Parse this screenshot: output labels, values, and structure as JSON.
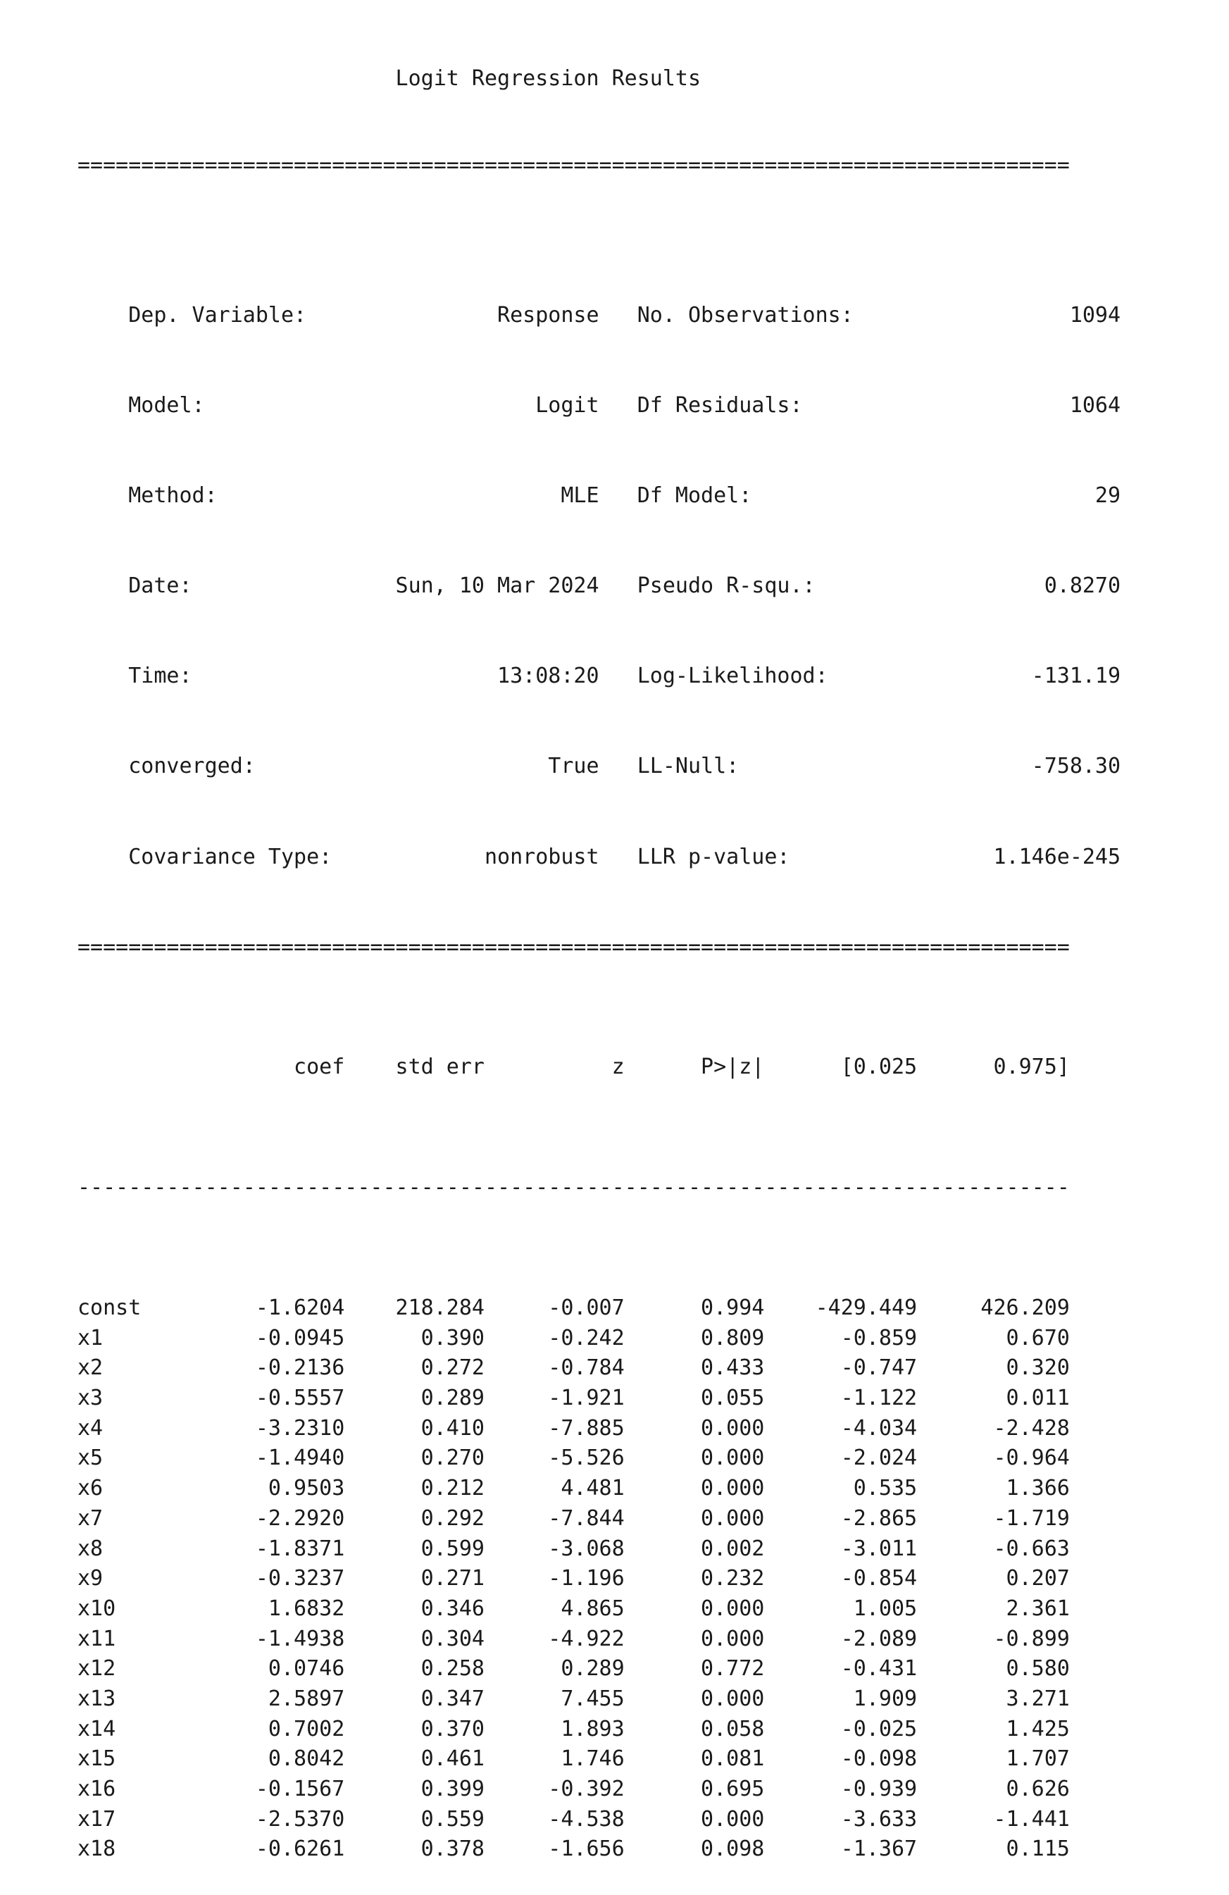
{
  "title": "Logit Regression Results",
  "rule_double": "==============================================================================",
  "rule_single": "------------------------------------------------------------------------------",
  "summary": [
    {
      "left_label": "Dep. Variable:",
      "left_value": "Response",
      "right_label": "No. Observations:",
      "right_value": "1094"
    },
    {
      "left_label": "Model:",
      "left_value": "Logit",
      "right_label": "Df Residuals:",
      "right_value": "1064"
    },
    {
      "left_label": "Method:",
      "left_value": "MLE",
      "right_label": "Df Model:",
      "right_value": "29"
    },
    {
      "left_label": "Date:",
      "left_value": "Sun, 10 Mar 2024",
      "right_label": "Pseudo R-squ.:",
      "right_value": "0.8270"
    },
    {
      "left_label": "Time:",
      "left_value": "13:08:20",
      "right_label": "Log-Likelihood:",
      "right_value": "-131.19"
    },
    {
      "left_label": "converged:",
      "left_value": "True",
      "right_label": "LL-Null:",
      "right_value": "-758.30"
    },
    {
      "left_label": "Covariance Type:",
      "left_value": "nonrobust",
      "right_label": "LLR p-value:",
      "right_value": "1.146e-245"
    }
  ],
  "coef_headers": [
    "coef",
    "std err",
    "z",
    "P>|z|",
    "[0.025",
    "0.975]"
  ],
  "coef_rows": [
    {
      "name": "const",
      "coef": "-1.6204",
      "std_err": "218.284",
      "z": "-0.007",
      "p": "0.994",
      "lo": "-429.449",
      "hi": "426.209"
    },
    {
      "name": "x1",
      "coef": "-0.0945",
      "std_err": "0.390",
      "z": "-0.242",
      "p": "0.809",
      "lo": "-0.859",
      "hi": "0.670"
    },
    {
      "name": "x2",
      "coef": "-0.2136",
      "std_err": "0.272",
      "z": "-0.784",
      "p": "0.433",
      "lo": "-0.747",
      "hi": "0.320"
    },
    {
      "name": "x3",
      "coef": "-0.5557",
      "std_err": "0.289",
      "z": "-1.921",
      "p": "0.055",
      "lo": "-1.122",
      "hi": "0.011"
    },
    {
      "name": "x4",
      "coef": "-3.2310",
      "std_err": "0.410",
      "z": "-7.885",
      "p": "0.000",
      "lo": "-4.034",
      "hi": "-2.428"
    },
    {
      "name": "x5",
      "coef": "-1.4940",
      "std_err": "0.270",
      "z": "-5.526",
      "p": "0.000",
      "lo": "-2.024",
      "hi": "-0.964"
    },
    {
      "name": "x6",
      "coef": "0.9503",
      "std_err": "0.212",
      "z": "4.481",
      "p": "0.000",
      "lo": "0.535",
      "hi": "1.366"
    },
    {
      "name": "x7",
      "coef": "-2.2920",
      "std_err": "0.292",
      "z": "-7.844",
      "p": "0.000",
      "lo": "-2.865",
      "hi": "-1.719"
    },
    {
      "name": "x8",
      "coef": "-1.8371",
      "std_err": "0.599",
      "z": "-3.068",
      "p": "0.002",
      "lo": "-3.011",
      "hi": "-0.663"
    },
    {
      "name": "x9",
      "coef": "-0.3237",
      "std_err": "0.271",
      "z": "-1.196",
      "p": "0.232",
      "lo": "-0.854",
      "hi": "0.207"
    },
    {
      "name": "x10",
      "coef": "1.6832",
      "std_err": "0.346",
      "z": "4.865",
      "p": "0.000",
      "lo": "1.005",
      "hi": "2.361"
    },
    {
      "name": "x11",
      "coef": "-1.4938",
      "std_err": "0.304",
      "z": "-4.922",
      "p": "0.000",
      "lo": "-2.089",
      "hi": "-0.899"
    },
    {
      "name": "x12",
      "coef": "0.0746",
      "std_err": "0.258",
      "z": "0.289",
      "p": "0.772",
      "lo": "-0.431",
      "hi": "0.580"
    },
    {
      "name": "x13",
      "coef": "2.5897",
      "std_err": "0.347",
      "z": "7.455",
      "p": "0.000",
      "lo": "1.909",
      "hi": "3.271"
    },
    {
      "name": "x14",
      "coef": "0.7002",
      "std_err": "0.370",
      "z": "1.893",
      "p": "0.058",
      "lo": "-0.025",
      "hi": "1.425"
    },
    {
      "name": "x15",
      "coef": "0.8042",
      "std_err": "0.461",
      "z": "1.746",
      "p": "0.081",
      "lo": "-0.098",
      "hi": "1.707"
    },
    {
      "name": "x16",
      "coef": "-0.1567",
      "std_err": "0.399",
      "z": "-0.392",
      "p": "0.695",
      "lo": "-0.939",
      "hi": "0.626"
    },
    {
      "name": "x17",
      "coef": "-2.5370",
      "std_err": "0.559",
      "z": "-4.538",
      "p": "0.000",
      "lo": "-3.633",
      "hi": "-1.441"
    },
    {
      "name": "x18",
      "coef": "-0.6261",
      "std_err": "0.378",
      "z": "-1.656",
      "p": "0.098",
      "lo": "-1.367",
      "hi": "0.115"
    }
  ]
}
